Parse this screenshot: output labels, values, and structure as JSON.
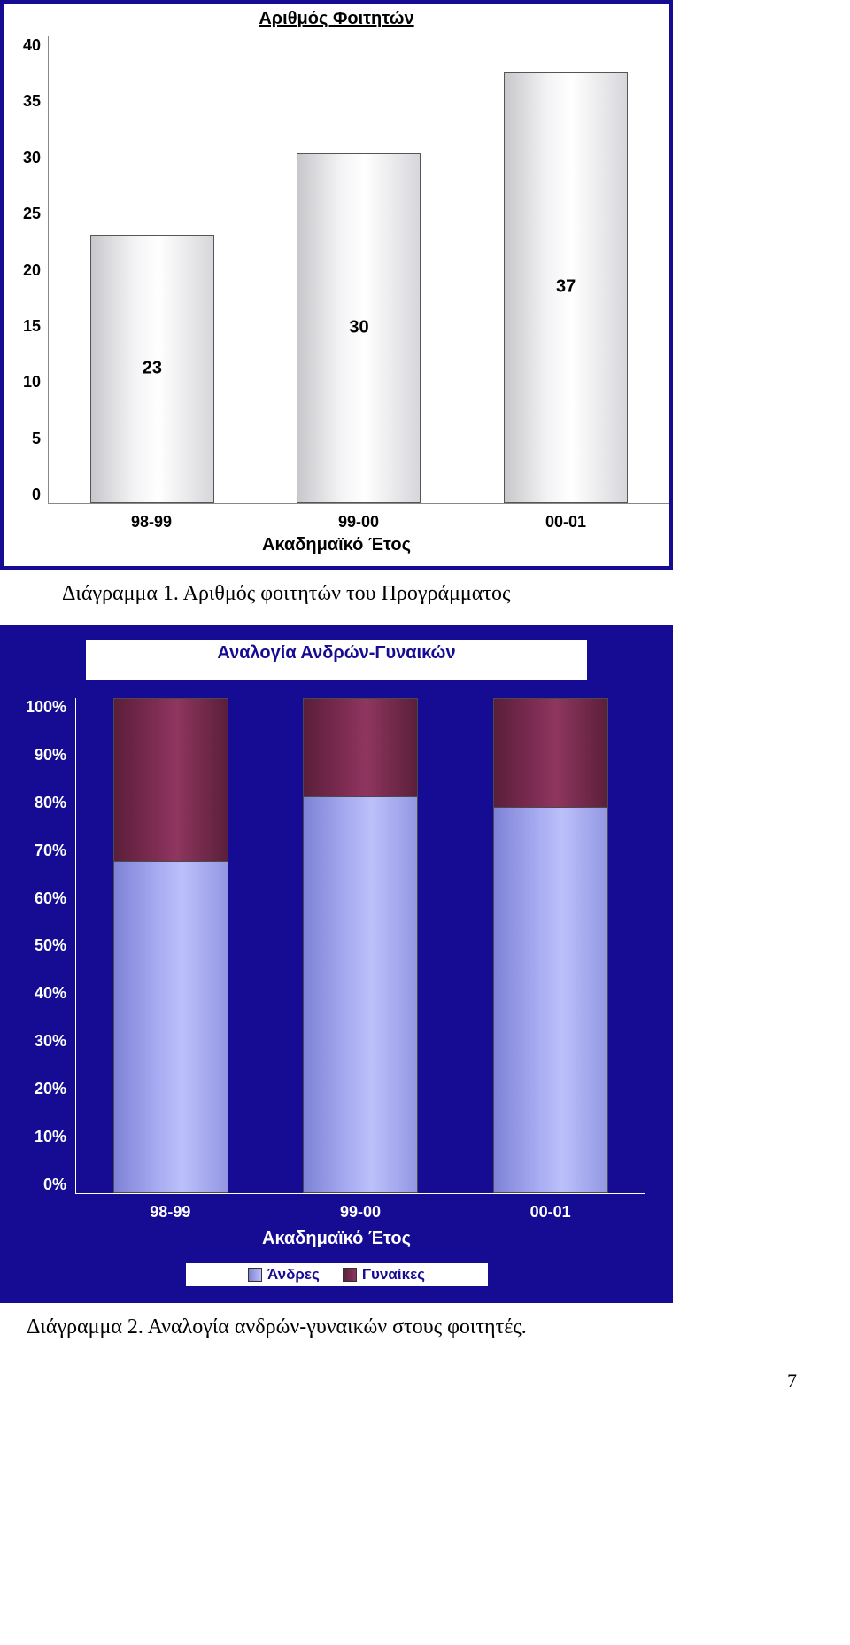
{
  "chart1": {
    "type": "bar",
    "title": "Αριθμός Φοιτητών",
    "categories": [
      "98-99",
      "99-00",
      "00-01"
    ],
    "values": [
      23,
      30,
      37
    ],
    "ylim": [
      0,
      40
    ],
    "ytick_step": 5,
    "yticks": [
      "40",
      "35",
      "30",
      "25",
      "20",
      "15",
      "10",
      "5",
      "0"
    ],
    "xlabel": "Ακαδημαϊκό Έτος",
    "panel_bg": "#160b93",
    "plot_bg": "#ffffff",
    "bar_gradient": [
      "#c8c8cc",
      "#ffffff",
      "#d7d7db"
    ],
    "bar_border": "#555555",
    "title_fontsize": 20,
    "label_fontsize": 18,
    "value_fontsize": 20,
    "caption": "Διάγραμμα 1. Αριθμός φοιτητών του Προγράμματος"
  },
  "chart2": {
    "type": "stacked-bar-100",
    "title": "Αναλογία Ανδρών-Γυναικών",
    "categories": [
      "98-99",
      "99-00",
      "00-01"
    ],
    "series": [
      {
        "name": "Άνδρες",
        "color_gradient": [
          "#7e82d6",
          "#bcc0fa"
        ],
        "values_pct": [
          67,
          80,
          78
        ]
      },
      {
        "name": "Γυναίκες",
        "color_gradient": [
          "#5a1f3a",
          "#8f365f"
        ],
        "values_pct": [
          33,
          20,
          22
        ]
      }
    ],
    "ylim": [
      0,
      100
    ],
    "ytick_step": 10,
    "yticks": [
      "100%",
      "90%",
      "80%",
      "70%",
      "60%",
      "50%",
      "40%",
      "30%",
      "20%",
      "10%",
      "0%"
    ],
    "xlabel": "Ακαδημαϊκό Έτος",
    "panel_bg": "#160b93",
    "title_color": "#160b93",
    "axis_text_color": "#ffffff",
    "legend_labels": [
      "Άνδρες",
      "Γυναίκες"
    ],
    "caption": "Διάγραμμα 2. Αναλογία ανδρών-γυναικών στους φοιτητές."
  },
  "page_number": "7"
}
